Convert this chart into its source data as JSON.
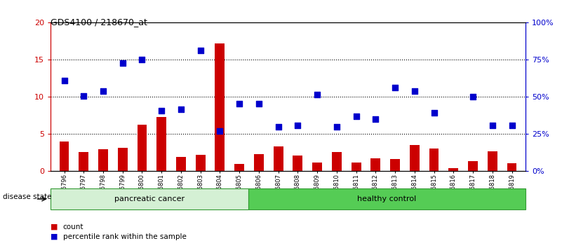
{
  "title": "GDS4100 / 218670_at",
  "samples": [
    "GSM356796",
    "GSM356797",
    "GSM356798",
    "GSM356799",
    "GSM356800",
    "GSM356801",
    "GSM356802",
    "GSM356803",
    "GSM356804",
    "GSM356805",
    "GSM356806",
    "GSM356807",
    "GSM356808",
    "GSM356809",
    "GSM356810",
    "GSM356811",
    "GSM356812",
    "GSM356813",
    "GSM356814",
    "GSM356815",
    "GSM356816",
    "GSM356817",
    "GSM356818",
    "GSM356819"
  ],
  "count": [
    4.0,
    2.6,
    2.9,
    3.1,
    6.2,
    7.3,
    1.9,
    2.2,
    17.2,
    1.0,
    2.3,
    3.3,
    2.1,
    1.2,
    2.6,
    1.2,
    1.7,
    1.6,
    3.5,
    3.0,
    0.4,
    1.3,
    2.7,
    1.1
  ],
  "pct_x": [
    0,
    1,
    2,
    3,
    4,
    5,
    6,
    7,
    8,
    9,
    10,
    11,
    12,
    13,
    14,
    15,
    16,
    17,
    18,
    19,
    21,
    22,
    23
  ],
  "pct_vals": [
    12.2,
    10.1,
    10.8,
    14.5,
    15.0,
    8.1,
    8.3,
    16.2,
    5.4,
    9.1,
    9.1,
    6.0,
    6.1,
    10.3,
    6.0,
    7.4,
    7.0,
    11.2,
    10.8,
    7.8,
    10.0,
    6.1,
    6.1
  ],
  "bar_color": "#cc0000",
  "dot_color": "#0000cc",
  "group1_label": "pancreatic cancer",
  "group2_label": "healthy control",
  "group1_count": 10,
  "group2_count": 14,
  "ylim_left": [
    0,
    20
  ],
  "ylim_right": [
    0,
    100
  ],
  "yticks_left": [
    0,
    5,
    10,
    15,
    20
  ],
  "yticks_right": [
    0,
    25,
    50,
    75,
    100
  ],
  "ytick_labels_left": [
    "0",
    "5",
    "10",
    "15",
    "20"
  ],
  "ytick_labels_right": [
    "0%",
    "25%",
    "50%",
    "75%",
    "100%"
  ],
  "grid_lines": [
    5,
    10,
    15
  ],
  "disease_state_label": "disease state",
  "legend_count_label": "count",
  "legend_pct_label": "percentile rank within the sample",
  "group1_facecolor": "#d4f0d4",
  "group2_facecolor": "#55cc55",
  "group_edgecolor": "#339933"
}
